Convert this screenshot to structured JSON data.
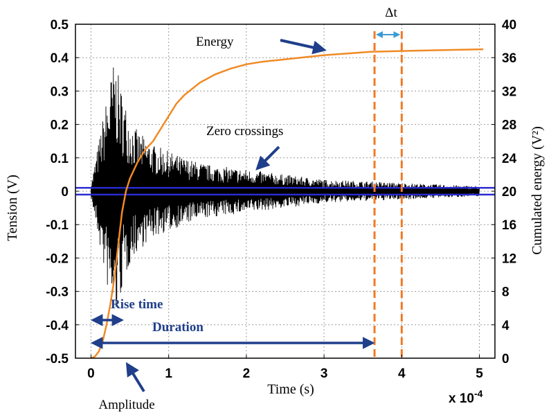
{
  "chart_data": {
    "type": "line",
    "xlabel": "Time (s)",
    "x_multiplier": "x 10",
    "x_multiplier_exponent": "-4",
    "ylabel_left": "Tension (V)",
    "ylabel_right": "Cumulated energy (V²)",
    "xlim": [
      -0.2,
      5.2
    ],
    "ylim_left": [
      -0.5,
      0.5
    ],
    "ylim_right": [
      0,
      40
    ],
    "x_ticks": [
      "0",
      "1",
      "2",
      "3",
      "4",
      "5"
    ],
    "y_ticks_left": [
      "0.5",
      "0.4",
      "0.3",
      "0.2",
      "0.1",
      "0",
      "-0.1",
      "-0.2",
      "-0.3",
      "-0.4",
      "-0.5"
    ],
    "y_ticks_right": [
      "40",
      "36",
      "32",
      "28",
      "24",
      "20",
      "16",
      "12",
      "8",
      "4",
      "0"
    ],
    "grid": true,
    "threshold_levels": [
      0.01,
      -0.01
    ],
    "signal_envelope": {
      "x": [
        0.0,
        0.1,
        0.2,
        0.3,
        0.4,
        0.5,
        0.6,
        0.8,
        1.0,
        1.2,
        1.5,
        2.0,
        2.5,
        3.0,
        3.5,
        4.0,
        4.5,
        5.0
      ],
      "amplitude": [
        0.02,
        0.15,
        0.28,
        0.4,
        0.3,
        0.22,
        0.18,
        0.14,
        0.12,
        0.1,
        0.08,
        0.065,
        0.05,
        0.035,
        0.03,
        0.025,
        0.02,
        0.015
      ]
    },
    "energy_curve": {
      "x": [
        0.0,
        0.05,
        0.1,
        0.15,
        0.2,
        0.25,
        0.3,
        0.35,
        0.4,
        0.45,
        0.5,
        0.6,
        0.7,
        0.8,
        0.9,
        1.0,
        1.1,
        1.2,
        1.4,
        1.6,
        1.8,
        2.0,
        2.2,
        2.5,
        2.8,
        3.0,
        3.3,
        3.6,
        4.0,
        4.5,
        5.05
      ],
      "y": [
        0,
        0.2,
        0.8,
        2.0,
        4.0,
        6.5,
        9.5,
        13.5,
        17.5,
        20.0,
        21.5,
        23.5,
        25.0,
        26.0,
        27.5,
        29.0,
        30.5,
        31.5,
        33.0,
        34.0,
        34.7,
        35.2,
        35.5,
        35.8,
        36.1,
        36.3,
        36.5,
        36.7,
        36.8,
        36.9,
        37.0
      ]
    },
    "dashed_markers_x": [
      3.65,
      4.0
    ],
    "annotations": {
      "energy": "Energy",
      "delta_t": "Δt",
      "zero_crossings": "Zero crossings",
      "rise_time": "Rise time",
      "duration": "Duration",
      "amplitude": "Amplitude"
    },
    "colors": {
      "signal": "#000000",
      "energy": "#f08a24",
      "threshold": "#2a2ad0",
      "dashed": "#f07a24",
      "arrows": "#1f3f8a",
      "delta_arrow": "#3d9ad6"
    }
  }
}
